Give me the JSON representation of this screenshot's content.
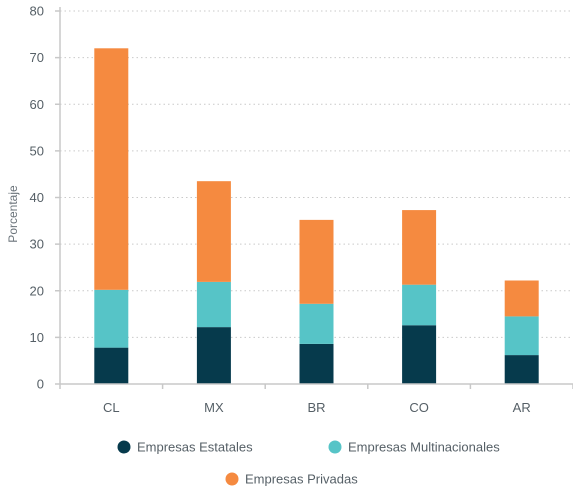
{
  "chart_data": {
    "type": "bar",
    "stacked": true,
    "categories": [
      "CL",
      "MX",
      "BR",
      "CO",
      "AR"
    ],
    "series": [
      {
        "name": "Empresas Estatales",
        "color": "#063a4c",
        "values": [
          7.8,
          12.2,
          8.6,
          12.6,
          6.2
        ]
      },
      {
        "name": "Empresas Multinacionales",
        "color": "#56c4c7",
        "values": [
          12.4,
          9.7,
          8.6,
          8.7,
          8.3
        ]
      },
      {
        "name": "Empresas Privadas",
        "color": "#f58a40",
        "values": [
          51.8,
          21.6,
          18.0,
          16.0,
          7.7
        ]
      }
    ],
    "title": "",
    "xlabel": "",
    "ylabel": "Porcentaje",
    "ylim": [
      0,
      80
    ],
    "yticks": [
      0,
      10,
      20,
      30,
      40,
      50,
      60,
      70,
      80
    ],
    "grid": "horizontal dotted",
    "legend": "bottom"
  }
}
